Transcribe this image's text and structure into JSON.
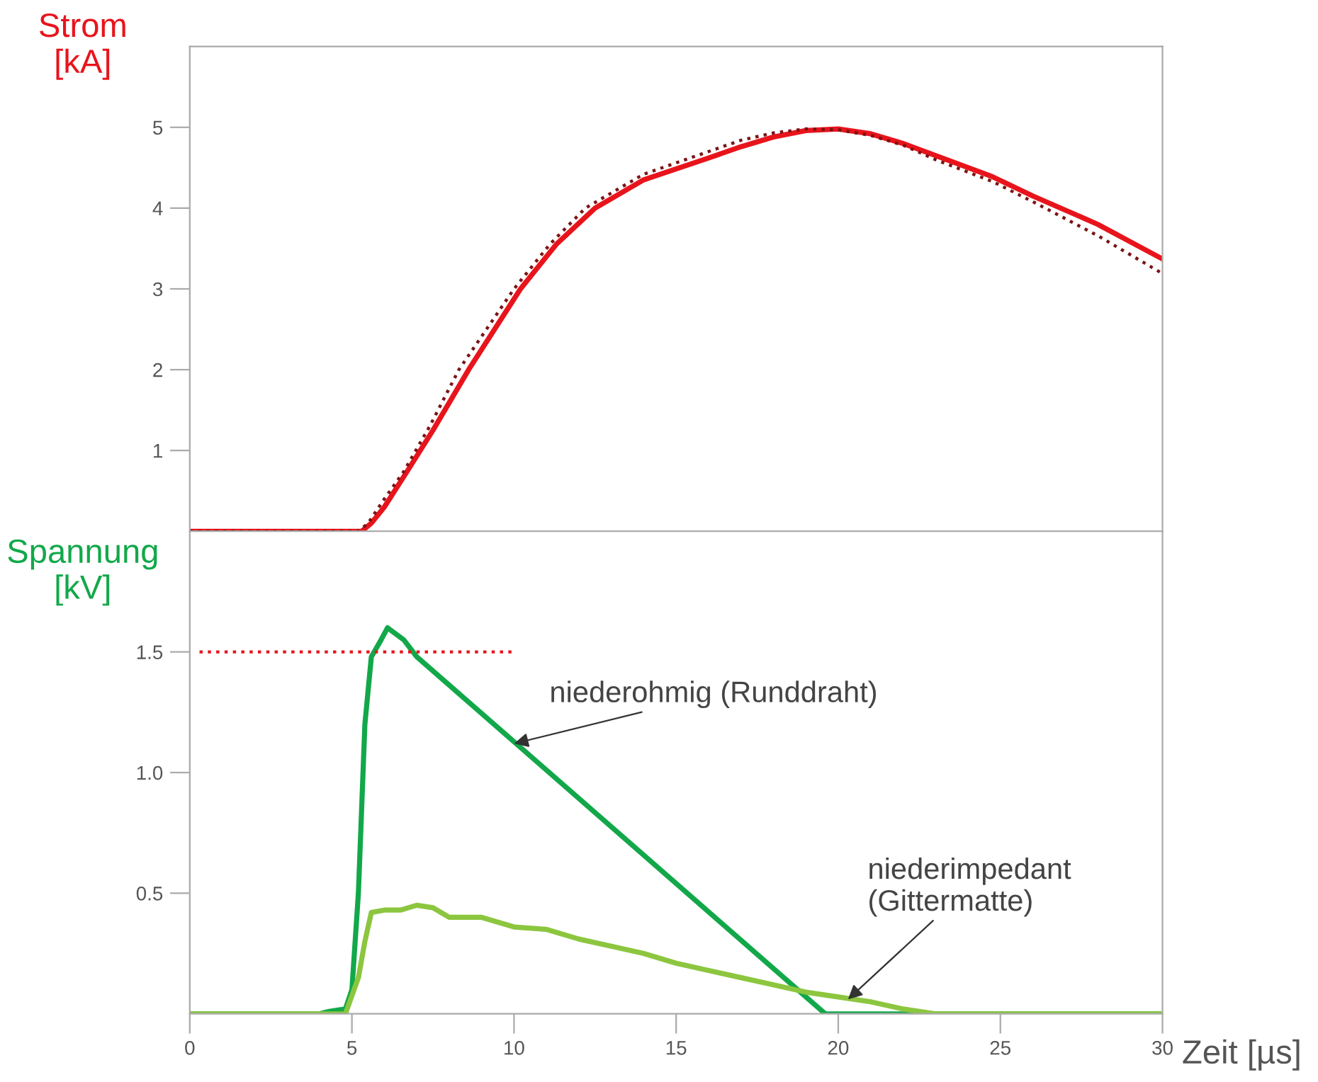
{
  "chart_data": [
    {
      "type": "line",
      "ylabel": "Strom\n[kA]",
      "xlim": [
        0,
        30
      ],
      "ylim": [
        0,
        6
      ],
      "yticks": [
        1,
        2,
        3,
        4,
        5
      ],
      "tick_labels": "y",
      "grid": false,
      "legend": false,
      "series": [
        {
          "color": "#e8141c",
          "line_style": "solid",
          "x": [
            0,
            5.3,
            5.6,
            6,
            6.7,
            7.5,
            8.6,
            10.2,
            11.3,
            12.5,
            14,
            16,
            17,
            18,
            19,
            20,
            21,
            22,
            23,
            24.75,
            26,
            28,
            30
          ],
          "values": [
            0,
            0,
            0.1,
            0.3,
            0.74,
            1.25,
            2.0,
            3.0,
            3.55,
            4.0,
            4.35,
            4.62,
            4.76,
            4.88,
            4.96,
            4.98,
            4.92,
            4.8,
            4.65,
            4.39,
            4.15,
            3.8,
            3.37
          ]
        },
        {
          "color": "#7a1414",
          "line_style": "dotted",
          "x": [
            0,
            5.2,
            5.5,
            6,
            6.6,
            7.4,
            8.3,
            10,
            11.1,
            12.2,
            14,
            16,
            17,
            18,
            19,
            20,
            21,
            22,
            23,
            24.75,
            26,
            28,
            30
          ],
          "values": [
            0,
            0,
            0.1,
            0.4,
            0.74,
            1.3,
            2.0,
            3.0,
            3.55,
            4.0,
            4.42,
            4.7,
            4.84,
            4.93,
            4.98,
            4.97,
            4.9,
            4.78,
            4.6,
            4.33,
            4.08,
            3.66,
            3.19
          ]
        }
      ]
    },
    {
      "type": "line",
      "ylabel": "Spannung\n[kV]",
      "xlabel": "Zeit [µs]",
      "xlim": [
        0,
        30
      ],
      "ylim": [
        0,
        2
      ],
      "xticks": [
        0,
        5,
        10,
        15,
        20,
        25,
        30
      ],
      "yticks": [
        0.5,
        {
          "value": 1.0,
          "label": "1.0"
        },
        1.5
      ],
      "grid": false,
      "legend": false,
      "series": [
        {
          "color": "#12a84a",
          "line_style": "solid",
          "x": [
            0,
            4,
            4.3,
            4.8,
            5.0,
            5.2,
            5.4,
            5.6,
            5.9,
            6.1,
            6.6,
            7,
            19.6,
            30
          ],
          "values": [
            0,
            0,
            0.01,
            0.02,
            0.1,
            0.5,
            1.2,
            1.48,
            1.55,
            1.6,
            1.55,
            1.48,
            0,
            0
          ]
        },
        {
          "color": "#8cc63f",
          "line_style": "solid",
          "x": [
            0,
            4.8,
            5.2,
            5.4,
            5.6,
            6,
            6.5,
            7,
            7.5,
            8,
            9,
            10,
            11,
            12,
            13,
            14,
            15,
            16,
            17,
            18,
            19,
            20,
            21,
            22,
            23,
            30
          ],
          "values": [
            0,
            0,
            0.15,
            0.3,
            0.42,
            0.43,
            0.43,
            0.45,
            0.44,
            0.4,
            0.4,
            0.36,
            0.35,
            0.31,
            0.28,
            0.25,
            0.21,
            0.18,
            0.15,
            0.12,
            0.09,
            0.07,
            0.05,
            0.02,
            0,
            0
          ]
        },
        {
          "color": "#e8141c",
          "line_style": "dotted",
          "x": [
            0.3,
            10
          ],
          "values": [
            1.5,
            1.5
          ]
        }
      ],
      "annotations": [
        {
          "text": "niederohmig (Runddraht)",
          "x": 10,
          "y": 1.12
        },
        {
          "text": "niederimpedant\n(Gittermatte)",
          "x": 20.3,
          "y": 0.06
        }
      ]
    }
  ]
}
